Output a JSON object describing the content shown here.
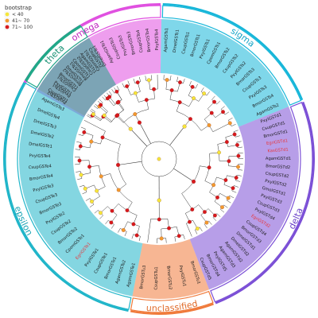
{
  "legend": {
    "title": "bootstrap",
    "items": [
      {
        "label": "< 40",
        "color": "#f5e63a"
      },
      {
        "label": "41~ 70",
        "color": "#f29a2e"
      },
      {
        "label": "71~ 100",
        "color": "#d7191c"
      }
    ]
  },
  "clades": [
    {
      "key": "omega",
      "label": "omega",
      "color": "#e04fe0",
      "labelColor": "#c026c0"
    },
    {
      "key": "sigma",
      "label": "sigma",
      "color": "#16b6d9",
      "labelColor": "#13a4c6"
    },
    {
      "key": "delta",
      "label": "delta",
      "color": "#7b4fd6",
      "labelColor": "#6a3fc8"
    },
    {
      "key": "unclassified",
      "label": "unclassified",
      "color": "#f07a3a",
      "labelColor": "#e06a28"
    },
    {
      "key": "epsilon",
      "label": "epsilon",
      "color": "#1fb5c9",
      "labelColor": "#1aa3b5"
    },
    {
      "key": "theta",
      "label": "theta",
      "color": "#1fa987",
      "labelColor": "#199275"
    }
  ],
  "leaves": {
    "omega": [
      "PxylGSTo2",
      "PxylGSTo1",
      "CsupGSTo1",
      "BmorGSTo2",
      "BmorGSTo1",
      "CsupGSTo2",
      "CpomGSTo1",
      "DmelGSTo1",
      "AgamGSTo1",
      "CsupGSTo3",
      "PxylGSTo3",
      "BmorGSTo3",
      "CsupGSTo4",
      "BmorGSTo4",
      "PxylGSTo4"
    ],
    "sigma": [
      "AgamGSTs1",
      "DmelGSTs1",
      "CsupGSTs1",
      "BmorGSTs1",
      "PxylGSTs1",
      "CpomGSTs1",
      "BmorGSTs2",
      "CsupGSTs2",
      "PxylGSTs2",
      "BmorGSTs3",
      "CsupGSTs3",
      "PxylGSTs3",
      "BmorGSTs4",
      "AgamGSTs2"
    ],
    "delta": [
      "PxylGSTd1",
      "CsupGSTd1",
      "BmorGSTd1",
      "EgriGSTd1",
      "KasGSTd1",
      "AgamGSTd1",
      "BmorGSTd2",
      "CsupGSTd2",
      "PxylGSTd2",
      "GmolGSTd1",
      "PxylGSTd3",
      "CsupGSTd3",
      "PxylGSTd4",
      "EgriGSTd2",
      "CsupGSTd4",
      "BmorGSTd3",
      "DmelGSTd1",
      "DmelGSTd2",
      "AgamGSTd2",
      "AgamGSTd3",
      "PxylGSTd5",
      "BmorGSTd4",
      "CsupGSTd5"
    ],
    "unclassified": [
      "BmorGSTu1",
      "PxylGSTu1",
      "BmorGSTu2",
      "CsupGSTu1",
      "BmorGSTu3"
    ],
    "epsilon": [
      "AgamGSTe1",
      "AgamGSTe2",
      "BmorGSTe1",
      "CsupGSTe1",
      "PxylGSTe1",
      "EgriGSTe1",
      "CpomGSTe1",
      "BmorGSTe2",
      "CsupGSTe2",
      "PxylGSTe2",
      "BmorGSTe3",
      "CsupGSTe3",
      "PxylGSTe3",
      "BmorGSTe4",
      "CsupGSTe4",
      "PxylGSTe4",
      "DmelGSTe1",
      "DmelGSTe2",
      "DmelGSTe3",
      "DmelGSTe4",
      "AgamGSTe3"
    ],
    "theta": [
      "CsupGSTt1",
      "PxylGSTt1",
      "BmorGSTt1",
      "DmelGSTt1",
      "CpomGSTt1",
      "AgamGSTt1",
      "CsupGSTt2"
    ]
  }
}
